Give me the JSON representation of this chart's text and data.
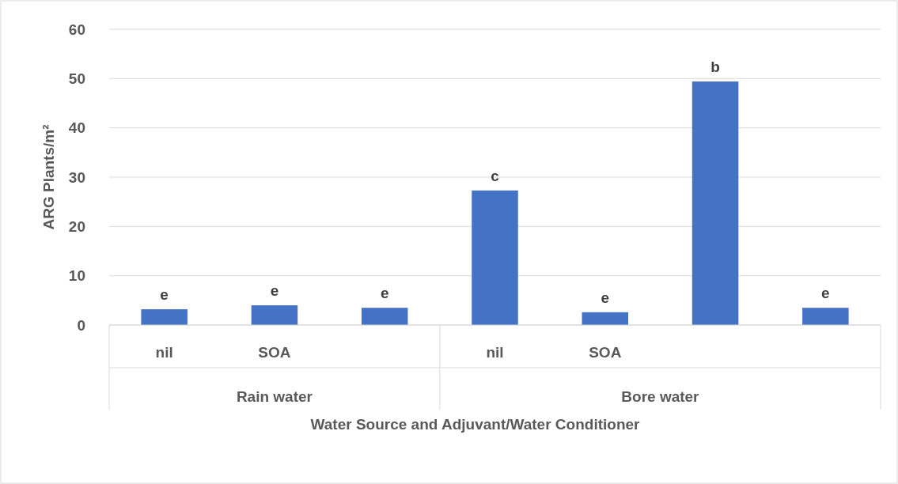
{
  "chart_data": {
    "type": "bar",
    "xlabel": "Water Source and Adjuvant/Water Conditioner",
    "ylabel": "ARG Plants/m²",
    "categories": [
      "nil",
      "SOA",
      null,
      "nil",
      "SOA",
      null,
      null
    ],
    "values": [
      3.2,
      4.0,
      3.5,
      27.3,
      2.6,
      49.4,
      3.5
    ],
    "value_labels": [
      "e",
      "e",
      "e",
      "c",
      "e",
      "b",
      "e"
    ],
    "color": "#4472c4",
    "ylim": [
      0,
      60
    ],
    "yticks": [
      0,
      10,
      20,
      30,
      40,
      50,
      60
    ],
    "grid": "y",
    "annotations": [
      "Rain water",
      "Bore water"
    ]
  }
}
